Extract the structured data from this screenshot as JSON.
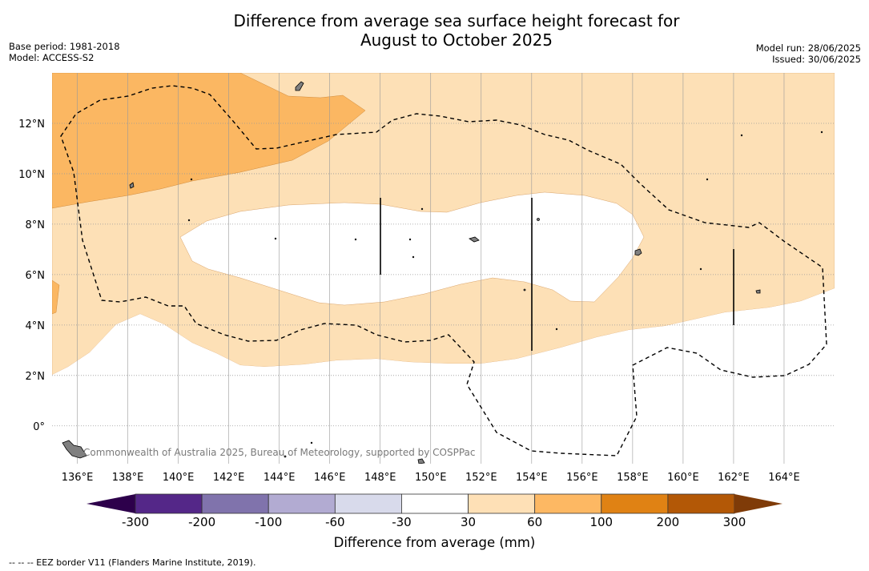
{
  "title": {
    "line1": "Difference from average sea surface height forecast for",
    "line2": "August to October 2025"
  },
  "meta_left": {
    "base_period": "Base period: 1981-2018",
    "model": "Model: ACCESS-S2"
  },
  "meta_right": {
    "model_run": "Model run: 28/06/2025",
    "issued": "Issued: 30/06/2025"
  },
  "map": {
    "lon_range": [
      135,
      166
    ],
    "lat_range": [
      -1.5,
      14
    ],
    "x_ticks": [
      {
        "value": 136,
        "label": "136°E"
      },
      {
        "value": 138,
        "label": "138°E"
      },
      {
        "value": 140,
        "label": "140°E"
      },
      {
        "value": 142,
        "label": "142°E"
      },
      {
        "value": 144,
        "label": "144°E"
      },
      {
        "value": 146,
        "label": "146°E"
      },
      {
        "value": 148,
        "label": "148°E"
      },
      {
        "value": 150,
        "label": "150°E"
      },
      {
        "value": 152,
        "label": "152°E"
      },
      {
        "value": 154,
        "label": "154°E"
      },
      {
        "value": 156,
        "label": "156°E"
      },
      {
        "value": 158,
        "label": "158°E"
      },
      {
        "value": 160,
        "label": "160°E"
      },
      {
        "value": 162,
        "label": "162°E"
      },
      {
        "value": 164,
        "label": "164°E"
      }
    ],
    "y_ticks": [
      {
        "value": 12,
        "label": "12°N"
      },
      {
        "value": 10,
        "label": "10°N"
      },
      {
        "value": 8,
        "label": "8°N"
      },
      {
        "value": 6,
        "label": "6°N"
      },
      {
        "value": 4,
        "label": "4°N"
      },
      {
        "value": 2,
        "label": "2°N"
      },
      {
        "value": 0,
        "label": "0°"
      }
    ],
    "credit": "Commonwealth of Australia 2025, Bureau of Meteorology, supported by COSPPac",
    "colors": {
      "level_30_60": "#fde0b6",
      "level_60_100": "#fbb762",
      "land": "#808080",
      "eez": "#000000",
      "grid": "#999999"
    }
  },
  "colorbar": {
    "title": "Difference from average (mm)",
    "labels": [
      "-300",
      "-200",
      "-100",
      "-60",
      "-30",
      "30",
      "60",
      "100",
      "200",
      "300"
    ],
    "colors": [
      "#2d004b",
      "#542788",
      "#8073ac",
      "#b2abd2",
      "#d8daeb",
      "#ffffff",
      "#fee0b6",
      "#fdb863",
      "#e08214",
      "#b35806",
      "#7f3b08"
    ]
  },
  "footer_note": "--  --  -- EEZ border V11 (Flanders Marine Institute, 2019)."
}
